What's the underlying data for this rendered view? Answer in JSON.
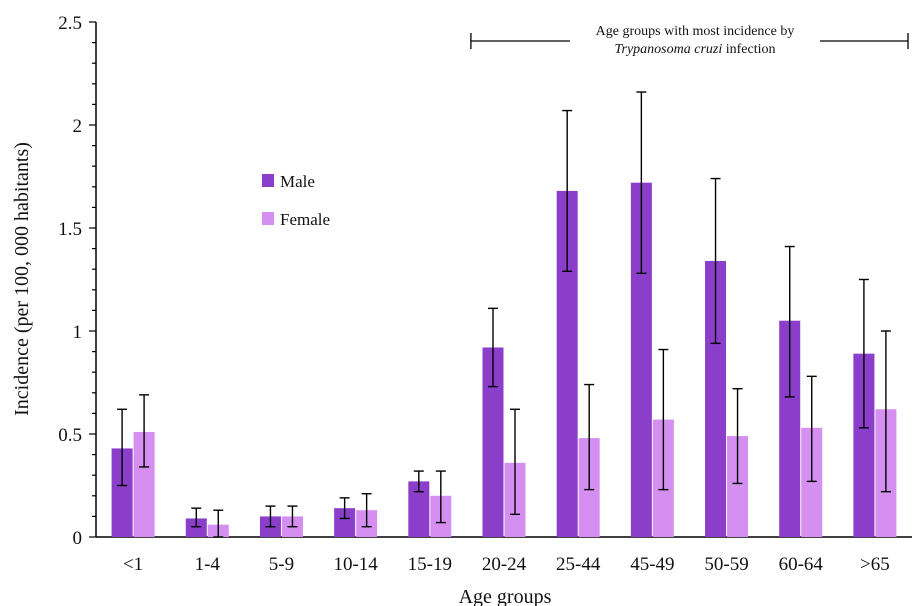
{
  "chart_data": {
    "type": "bar",
    "xlabel": "Age groups",
    "ylabel": "Incidence (per 100, 000 habitants)",
    "ylim": [
      0,
      2.5
    ],
    "y_ticks": [
      "0",
      "0.5",
      "1",
      "1.5",
      "2",
      "2.5"
    ],
    "grid": false,
    "legend_position": "upper-left",
    "categories": [
      "<1",
      "1-4",
      "5-9",
      "10-14",
      "15-19",
      "20-24",
      "25-44",
      "45-49",
      "50-59",
      "60-64",
      ">65"
    ],
    "series": [
      {
        "name": "Male",
        "color": "#8b3ec9",
        "values": [
          0.43,
          0.09,
          0.1,
          0.14,
          0.27,
          0.92,
          1.68,
          1.72,
          1.34,
          1.05,
          0.89
        ],
        "error_low": [
          0.25,
          0.05,
          0.05,
          0.09,
          0.22,
          0.73,
          1.29,
          1.28,
          0.94,
          0.68,
          0.53
        ],
        "error_high": [
          0.62,
          0.14,
          0.15,
          0.19,
          0.32,
          1.11,
          2.07,
          2.16,
          1.74,
          1.41,
          1.25
        ]
      },
      {
        "name": "Female",
        "color": "#d58ff0",
        "values": [
          0.51,
          0.06,
          0.1,
          0.13,
          0.2,
          0.36,
          0.48,
          0.57,
          0.49,
          0.53,
          0.62
        ],
        "error_low": [
          0.34,
          0.0,
          0.05,
          0.05,
          0.07,
          0.11,
          0.23,
          0.23,
          0.26,
          0.27,
          0.22
        ],
        "error_high": [
          0.69,
          0.13,
          0.15,
          0.21,
          0.32,
          0.62,
          0.74,
          0.91,
          0.72,
          0.78,
          1.0
        ]
      }
    ],
    "annotation": {
      "line1": "Age groups with most incidence by",
      "line2_italic": "Trypanosoma cruzi",
      "line2_rest": " infection",
      "from_category": "20-24",
      "to_category": ">65"
    }
  }
}
